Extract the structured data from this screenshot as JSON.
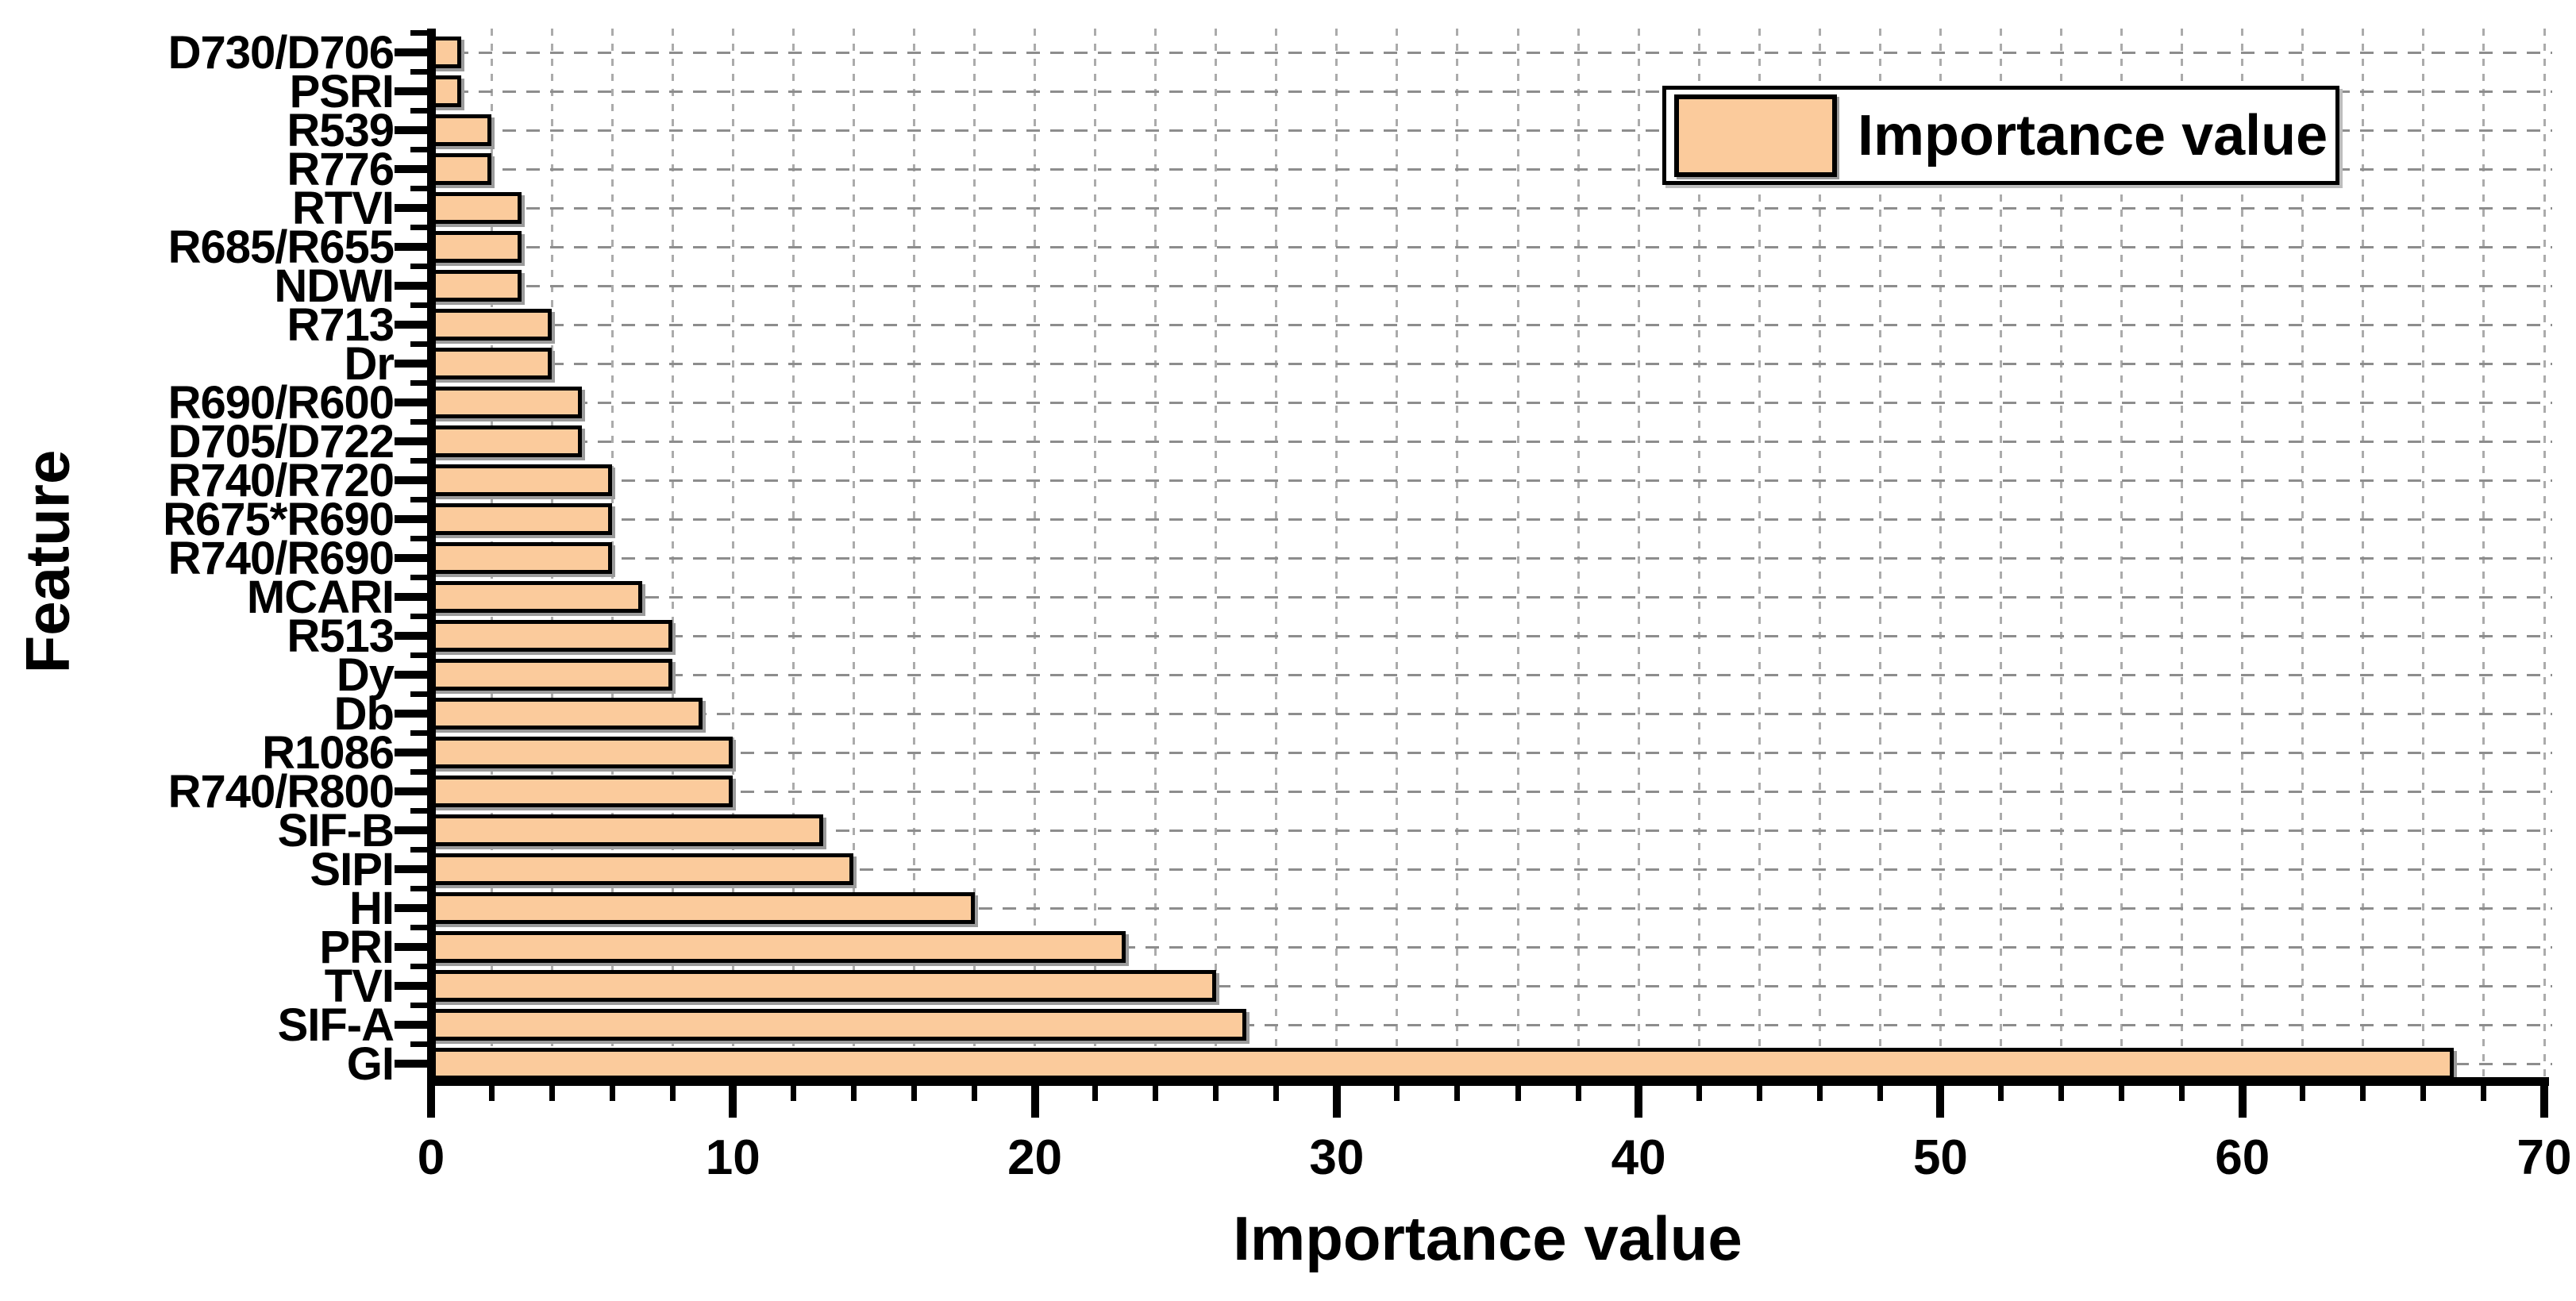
{
  "chart_data": {
    "type": "bar",
    "orientation": "horizontal",
    "title": "",
    "xlabel": "Importance value",
    "ylabel": "Feature",
    "xlim": [
      0,
      70
    ],
    "x_major_ticks": [
      0,
      10,
      20,
      30,
      40,
      50,
      60,
      70
    ],
    "x_minor_tick_step": 2,
    "grid": true,
    "legend": {
      "label": "Importance value",
      "position": "top-right"
    },
    "categories": [
      "D730/D706",
      "PSRI",
      "R539",
      "R776",
      "RTVI",
      "R685/R655",
      "NDWI",
      "R713",
      "Dr",
      "R690/R600",
      "D705/D722",
      "R740/R720",
      "R675*R690",
      "R740/R690",
      "MCARI",
      "R513",
      "Dy",
      "Db",
      "R1086",
      "R740/R800",
      "SIF-B",
      "SIPI",
      "HI",
      "PRI",
      "TVI",
      "SIF-A",
      "GI"
    ],
    "series": [
      {
        "name": "Importance value",
        "values": [
          1,
          1,
          2,
          2,
          3,
          3,
          3,
          4,
          4,
          5,
          5,
          6,
          6,
          6,
          7,
          8,
          8,
          9,
          10,
          10,
          13,
          14,
          18,
          23,
          26,
          27,
          67
        ]
      }
    ],
    "colors": {
      "bar_fill": "#FBCB9C",
      "bar_border": "#000000",
      "axis": "#000000",
      "grid_horizontal": "#8d8d8d",
      "grid_vertical": "#ababab",
      "background": "#ffffff"
    }
  }
}
